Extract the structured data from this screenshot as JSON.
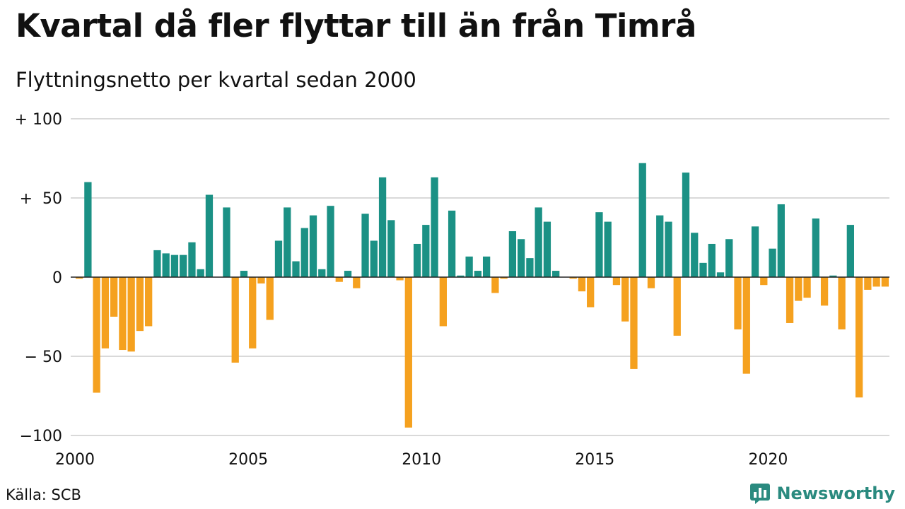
{
  "header": {
    "title": "Kvartal då fler flyttar till än från Timrå",
    "subtitle": "Flyttningsnetto per kvartal sedan 2000"
  },
  "footer": {
    "source": "Källa: SCB",
    "brand": "Newsworthy"
  },
  "colors": {
    "positive": "#1b9185",
    "negative": "#f5a11f",
    "grid": "#d9d9d9",
    "brand": "#2a8a7f"
  },
  "chart_data": {
    "type": "bar",
    "title": "Kvartal då fler flyttar till än från Timrå",
    "subtitle": "Flyttningsnetto per kvartal sedan 2000",
    "x_tick_labels": [
      "2000",
      "2005",
      "2010",
      "2015",
      "2020"
    ],
    "y_tick_labels": [
      "+ 100",
      "+  50",
      "0",
      "− 50",
      "−100"
    ],
    "y_ticks": [
      100,
      50,
      0,
      -50,
      -100
    ],
    "ylim": [
      -100,
      100
    ],
    "grid": true,
    "first_period": "2000 Q1",
    "values": [
      -1,
      60,
      -73,
      -45,
      -25,
      -46,
      -47,
      -34,
      -31,
      17,
      15,
      14,
      14,
      22,
      5,
      52,
      0,
      44,
      -54,
      4,
      -45,
      -4,
      -27,
      23,
      44,
      10,
      31,
      39,
      5,
      45,
      -3,
      4,
      -7,
      40,
      23,
      63,
      36,
      -2,
      -95,
      21,
      33,
      63,
      -31,
      42,
      1,
      13,
      4,
      13,
      -10,
      -1,
      29,
      24,
      12,
      44,
      35,
      4,
      0,
      -1,
      -9,
      -19,
      41,
      35,
      -5,
      -28,
      -58,
      72,
      -7,
      39,
      35,
      -37,
      66,
      28,
      9,
      21,
      3,
      24,
      -33,
      -61,
      32,
      -5,
      18,
      46,
      -29,
      -15,
      -13,
      37,
      -18,
      1,
      -33,
      33,
      -76,
      -8,
      -6,
      -6
    ]
  }
}
